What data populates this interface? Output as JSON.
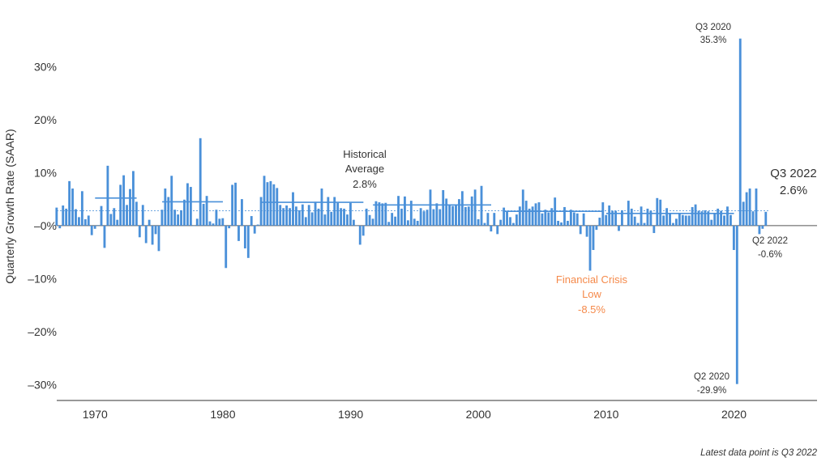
{
  "chart_data": {
    "type": "bar",
    "ylabel": "Quarterly Growth Rate (SAAR)",
    "ylim": [
      -33,
      38
    ],
    "y_ticks": [
      "30%",
      "20%",
      "10%",
      "–0%",
      "–10%",
      "–20%",
      "–30%"
    ],
    "y_tick_values": [
      30,
      20,
      10,
      0,
      -10,
      -20,
      -30
    ],
    "x_ticks": [
      "1970",
      "1980",
      "1990",
      "2000",
      "2010",
      "2020"
    ],
    "x_tick_values": [
      1970,
      1980,
      1990,
      2000,
      2010,
      2020
    ],
    "xlim": [
      1967,
      2026.5
    ],
    "start_year": 1967,
    "series": [
      {
        "values": [
          3.4,
          -0.5,
          3.8,
          3.2,
          8.4,
          7.0,
          3.1,
          1.6,
          6.5,
          1.2,
          1.9,
          -1.8,
          -0.6,
          0.1,
          3.7,
          -4.2,
          11.3,
          2.2,
          3.3,
          1.1,
          7.7,
          9.5,
          3.9,
          6.9,
          10.3,
          4.5,
          -2.2,
          3.9,
          -3.3,
          1.1,
          -3.6,
          -1.6,
          -4.8,
          3.0,
          7.0,
          5.4,
          9.4,
          3.0,
          2.1,
          2.9,
          4.9,
          8.0,
          7.3,
          0.0,
          1.3,
          16.5,
          4.1,
          5.6,
          0.8,
          0.4,
          3.0,
          1.3,
          1.4,
          -8.0,
          -0.5,
          7.7,
          8.1,
          -2.9,
          5.0,
          -4.3,
          -6.1,
          1.8,
          -1.5,
          0.2,
          5.4,
          9.4,
          8.2,
          8.4,
          7.8,
          7.1,
          3.9,
          3.3,
          3.8,
          3.3,
          6.3,
          3.6,
          2.9,
          4.0,
          1.6,
          3.9,
          2.5,
          4.5,
          3.2,
          7.0,
          2.1,
          5.4,
          2.6,
          5.4,
          4.3,
          3.3,
          3.2,
          2.1,
          4.3,
          1.1,
          0.0,
          -3.6,
          -1.9,
          3.2,
          2.0,
          1.3,
          4.6,
          4.4,
          4.2,
          4.3,
          0.7,
          2.4,
          1.7,
          5.6,
          3.2,
          5.5,
          1.0,
          4.7,
          1.3,
          0.9,
          3.3,
          2.7,
          3.0,
          6.8,
          3.1,
          4.2,
          3.1,
          6.7,
          5.1,
          3.9,
          3.7,
          4.0,
          5.0,
          6.5,
          3.5,
          3.6,
          5.5,
          6.8,
          1.2,
          7.5,
          0.5,
          2.4,
          -1.1,
          2.4,
          -1.6,
          1.1,
          3.4,
          2.6,
          1.6,
          0.5,
          2.1,
          3.6,
          6.8,
          4.7,
          3.2,
          3.6,
          4.2,
          4.4,
          2.3,
          3.0,
          2.5,
          3.3,
          5.3,
          0.9,
          0.6,
          3.5,
          0.9,
          3.0,
          2.5,
          2.3,
          -1.6,
          2.3,
          -2.1,
          -8.5,
          -4.6,
          -0.8,
          1.5,
          4.4,
          2.0,
          3.8,
          2.8,
          2.8,
          -1.0,
          2.9,
          -0.1,
          4.7,
          3.2,
          1.7,
          0.5,
          3.6,
          0.5,
          3.2,
          2.8,
          -1.4,
          5.2,
          4.9,
          1.9,
          3.3,
          2.3,
          0.5,
          1.3,
          2.2,
          2.0,
          1.9,
          1.9,
          3.5,
          4.0,
          2.8,
          2.7,
          2.9,
          2.7,
          1.1,
          2.4,
          3.2,
          2.8,
          1.9,
          3.6,
          2.0,
          -4.6,
          -29.9,
          35.3,
          4.5,
          6.3,
          7.0,
          2.7,
          7.0,
          -1.6,
          -0.6,
          2.6
        ]
      }
    ],
    "historical_average_label": [
      "Historical",
      "Average",
      "2.8%"
    ],
    "historical_average": 2.8,
    "annotations": {
      "q3_2020": [
        "Q3 2020",
        "35.3%"
      ],
      "q2_2020": [
        "Q2 2020",
        "-29.9%"
      ],
      "q3_2022": [
        "Q3 2022",
        "2.6%"
      ],
      "q2_2022": [
        "Q2 2022",
        "-0.6%"
      ],
      "financial_crisis": [
        "Financial Crisis",
        "Low",
        "-8.5%"
      ]
    },
    "decade_averages": [
      {
        "from": 1970,
        "to": 1973.25,
        "value": 5.2
      },
      {
        "from": 1975.25,
        "to": 1980.0,
        "value": 4.5
      },
      {
        "from": 1983.0,
        "to": 1991.0,
        "value": 4.4
      },
      {
        "from": 1991.75,
        "to": 2001.0,
        "value": 3.9
      },
      {
        "from": 2002.0,
        "to": 2009.75,
        "value": 2.7
      },
      {
        "from": 2010.0,
        "to": 2020.0,
        "value": 2.3
      }
    ],
    "colors": {
      "bar": "#4a90d9",
      "axis": "#333333",
      "average": "#4a90d9",
      "highlight": "#f58a4b"
    },
    "footnote": "Latest data point is Q3 2022"
  }
}
